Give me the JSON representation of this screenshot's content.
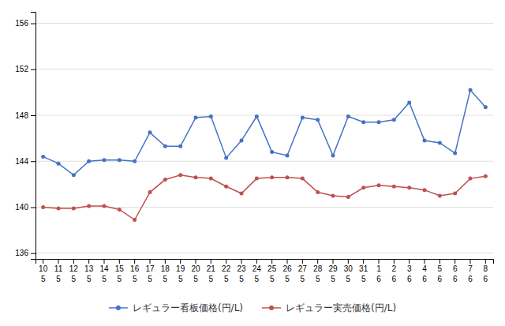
{
  "chart_data": {
    "type": "line",
    "categories": [
      "10\n5",
      "11\n5",
      "12\n5",
      "13\n5",
      "14\n5",
      "15\n5",
      "16\n5",
      "17\n5",
      "18\n5",
      "19\n5",
      "20\n5",
      "21\n5",
      "22\n5",
      "23\n5",
      "24\n5",
      "25\n5",
      "26\n5",
      "27\n5",
      "28\n5",
      "29\n5",
      "30\n5",
      "31\n5",
      "1\n6",
      "2\n6",
      "3\n6",
      "4\n6",
      "5\n6",
      "6\n6",
      "7\n6",
      "8\n6"
    ],
    "series": [
      {
        "name": "レギュラー看板価格(円/L)",
        "color": "#4472c4",
        "values": [
          144.4,
          143.8,
          142.8,
          144.0,
          144.1,
          144.1,
          144.0,
          146.5,
          145.3,
          145.3,
          147.8,
          147.9,
          144.3,
          145.8,
          147.9,
          144.8,
          144.5,
          147.8,
          147.6,
          144.5,
          147.9,
          147.4,
          147.4,
          147.6,
          149.1,
          145.8,
          145.6,
          144.7,
          150.2,
          148.7
        ]
      },
      {
        "name": "レギュラー実売価格(円/L)",
        "color": "#c0504d",
        "values": [
          140.0,
          139.9,
          139.9,
          140.1,
          140.1,
          139.8,
          138.9,
          141.3,
          142.4,
          142.8,
          142.6,
          142.5,
          141.8,
          141.2,
          142.5,
          142.6,
          142.6,
          142.5,
          141.3,
          141.0,
          140.9,
          141.7,
          141.9,
          141.8,
          141.7,
          141.5,
          141.0,
          141.2,
          142.5,
          142.7
        ]
      }
    ],
    "ylim": [
      135.5,
      157
    ],
    "yticks": [
      136,
      140,
      144,
      148,
      152,
      156
    ],
    "grid": true,
    "legend": "bottom",
    "marker": "circle"
  }
}
